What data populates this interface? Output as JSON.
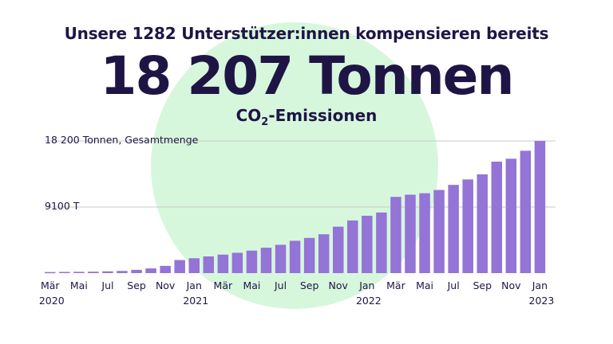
{
  "header": {
    "subtitle": "Unsere 1282 Unterstützer:innen kompensieren bereits",
    "headline": "18 207 Tonnen",
    "unit_main": "CO",
    "unit_sub": "2",
    "unit_rest": "-Emissionen"
  },
  "colors": {
    "bar": "#9474d6",
    "circle": "#d7f7dd",
    "text": "#1f1545",
    "grid": "#c8c8c8"
  },
  "chart_data": {
    "type": "bar",
    "title": "",
    "xlabel": "",
    "ylabel": "",
    "ylim": [
      0,
      18200
    ],
    "grid": false,
    "reference_lines": [
      {
        "value": 18200,
        "label": "18 200 Tonnen, Gesamtmenge"
      },
      {
        "value": 9100,
        "label": "9100 T"
      }
    ],
    "x_tick_labels": [
      {
        "index": 0,
        "month": "Mär",
        "year": "2020"
      },
      {
        "index": 2,
        "month": "Mai",
        "year": ""
      },
      {
        "index": 4,
        "month": "Jul",
        "year": ""
      },
      {
        "index": 6,
        "month": "Sep",
        "year": ""
      },
      {
        "index": 8,
        "month": "Nov",
        "year": ""
      },
      {
        "index": 10,
        "month": "Jan",
        "year": "2021"
      },
      {
        "index": 12,
        "month": "Mär",
        "year": ""
      },
      {
        "index": 14,
        "month": "Mai",
        "year": ""
      },
      {
        "index": 16,
        "month": "Jul",
        "year": ""
      },
      {
        "index": 18,
        "month": "Sep",
        "year": ""
      },
      {
        "index": 20,
        "month": "Nov",
        "year": ""
      },
      {
        "index": 22,
        "month": "Jan",
        "year": "2022"
      },
      {
        "index": 24,
        "month": "Mär",
        "year": ""
      },
      {
        "index": 26,
        "month": "Mai",
        "year": ""
      },
      {
        "index": 28,
        "month": "Jul",
        "year": ""
      },
      {
        "index": 30,
        "month": "Sep",
        "year": ""
      },
      {
        "index": 32,
        "month": "Nov",
        "year": ""
      },
      {
        "index": 34,
        "month": "Jan",
        "year": "2023"
      }
    ],
    "categories": [
      "2020-03",
      "2020-04",
      "2020-05",
      "2020-06",
      "2020-07",
      "2020-08",
      "2020-09",
      "2020-10",
      "2020-11",
      "2020-12",
      "2021-01",
      "2021-02",
      "2021-03",
      "2021-04",
      "2021-05",
      "2021-06",
      "2021-07",
      "2021-08",
      "2021-09",
      "2021-10",
      "2021-11",
      "2021-12",
      "2022-01",
      "2022-02",
      "2022-03",
      "2022-04",
      "2022-05",
      "2022-06",
      "2022-07",
      "2022-08",
      "2022-09",
      "2022-10",
      "2022-11",
      "2022-12",
      "2023-01"
    ],
    "values": [
      150,
      170,
      180,
      200,
      250,
      300,
      450,
      650,
      1000,
      1800,
      2050,
      2300,
      2550,
      2800,
      3100,
      3500,
      3900,
      4450,
      4850,
      5350,
      6400,
      7250,
      7900,
      8350,
      10500,
      10800,
      11000,
      11450,
      12150,
      12900,
      13600,
      15350,
      15750,
      16850,
      18200
    ]
  }
}
